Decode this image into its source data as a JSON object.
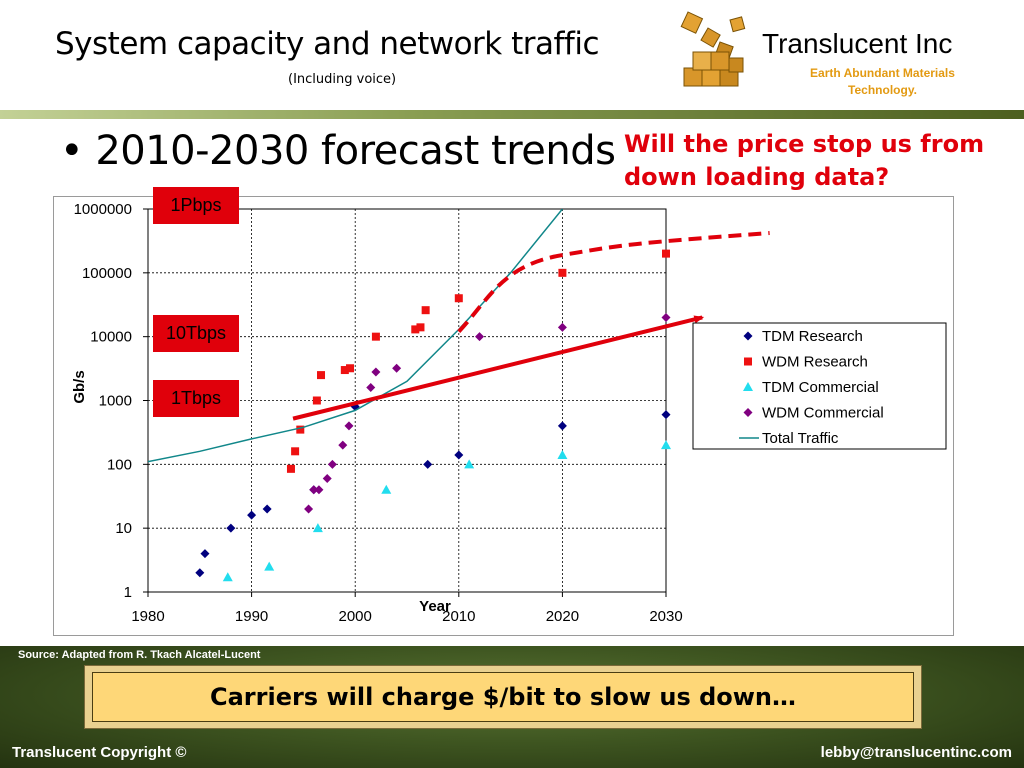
{
  "slide": {
    "title": "System capacity and network traffic",
    "subtitle": "(Including voice)",
    "company_name": "Translucent Inc",
    "company_tagline": "Earth Abundant Materials Technology.",
    "bullet": "2010-2030 forecast trends",
    "question": "Will the price stop us from down loading data?",
    "source": "Source: Adapted from R. Tkach Alcatel-Lucent",
    "banner": "Carriers will charge $/bit to slow us down…",
    "footer_left": "Translucent  Copyright ©",
    "footer_right": "lebby@translucentinc.com",
    "logo_icon": "stacked-cubes-icon"
  },
  "callouts": [
    "1Pbps",
    "10Tbps",
    "1Tbps"
  ],
  "colors": {
    "accent_red": "#e0000b",
    "tagline_orange": "#e39a12",
    "banner_fill": "#fed778",
    "band_green": "#3f5621",
    "tdm_research": "#00007f",
    "wdm_research": "#ee1111",
    "tdm_commercial": "#22ddee",
    "wdm_commercial": "#800080",
    "total_traffic": "#11878a"
  },
  "chart_data": {
    "type": "scatter",
    "xlabel": "Year",
    "ylabel": "Gb/s",
    "xlim": [
      1980,
      2030
    ],
    "ylim": [
      1,
      1000000
    ],
    "yscale": "log",
    "grid": true,
    "legend_position": "right",
    "x_ticks": [
      "1980",
      "1990",
      "2000",
      "2010",
      "2020",
      "2030"
    ],
    "y_ticks": [
      "1000000",
      "100000",
      "10000",
      "1000",
      "100",
      "10",
      "1"
    ],
    "series": [
      {
        "name": "TDM Research",
        "marker": "diamond",
        "points": [
          [
            1985,
            2
          ],
          [
            1985.5,
            4
          ],
          [
            1988,
            10
          ],
          [
            1990,
            16
          ],
          [
            1991.5,
            20
          ],
          [
            1996,
            40
          ],
          [
            2000,
            800
          ],
          [
            2007,
            100
          ],
          [
            2010,
            140
          ],
          [
            2020,
            400
          ],
          [
            2030,
            600
          ]
        ]
      },
      {
        "name": "WDM Research",
        "marker": "square",
        "points": [
          [
            1993.8,
            85
          ],
          [
            1994.2,
            160
          ],
          [
            1994.7,
            350
          ],
          [
            1996.3,
            1000
          ],
          [
            1996.7,
            2500
          ],
          [
            1999,
            3000
          ],
          [
            1999.5,
            3200
          ],
          [
            2002,
            10000
          ],
          [
            2005.8,
            13000
          ],
          [
            2006.3,
            14000
          ],
          [
            2006.8,
            26000
          ],
          [
            2010,
            40000
          ],
          [
            2020,
            100000
          ],
          [
            2030,
            200000
          ]
        ]
      },
      {
        "name": "TDM Commercial",
        "marker": "triangle",
        "points": [
          [
            1987.7,
            1.7
          ],
          [
            1991.7,
            2.5
          ],
          [
            1996.4,
            10
          ],
          [
            2003,
            40
          ],
          [
            2011,
            100
          ],
          [
            2020,
            140
          ],
          [
            2030,
            200
          ]
        ]
      },
      {
        "name": "WDM Commercial",
        "marker": "diamond",
        "points": [
          [
            1995.5,
            20
          ],
          [
            1996,
            40
          ],
          [
            1996.5,
            40
          ],
          [
            1997.3,
            60
          ],
          [
            1997.8,
            100
          ],
          [
            1998.8,
            200
          ],
          [
            1999.4,
            400
          ],
          [
            2001.5,
            1600
          ],
          [
            2002,
            2800
          ],
          [
            2004,
            3200
          ],
          [
            2012,
            10000
          ],
          [
            2020,
            14000
          ],
          [
            2030,
            20000
          ]
        ]
      },
      {
        "name": "Total Traffic",
        "marker": "line",
        "points": [
          [
            1980,
            110
          ],
          [
            1985,
            160
          ],
          [
            1990,
            250
          ],
          [
            1995,
            380
          ],
          [
            2000,
            700
          ],
          [
            2005,
            2000
          ],
          [
            2010,
            13000
          ],
          [
            2015,
            100000
          ],
          [
            2020,
            1000000
          ]
        ]
      }
    ],
    "annotations": [
      {
        "type": "trend-arrow",
        "color": "#e0000b",
        "from": [
          1994,
          520
        ],
        "to": [
          2033.5,
          20000
        ]
      },
      {
        "type": "dashed-forecast",
        "color": "#e0000b",
        "points": [
          [
            2010,
            12000
          ],
          [
            2013,
            40000
          ],
          [
            2020,
            190000
          ],
          [
            2026,
            330000
          ],
          [
            2040,
            420000
          ]
        ]
      }
    ]
  }
}
